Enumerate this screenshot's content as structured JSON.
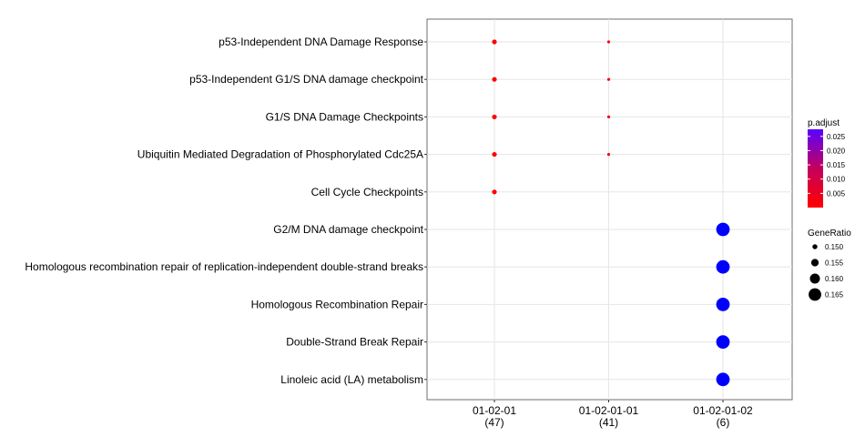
{
  "chart_data": {
    "type": "scatter",
    "categories": [
      "01-02-01",
      "01-02-01-01",
      "01-02-01-02"
    ],
    "category_counts": [
      "(47)",
      "(41)",
      "(6)"
    ],
    "terms": [
      "p53-Independent DNA Damage Response",
      "p53-Independent G1/S DNA damage checkpoint",
      "G1/S DNA Damage Checkpoints",
      "Ubiquitin Mediated Degradation of Phosphorylated Cdc25A",
      "Cell Cycle Checkpoints",
      "G2/M DNA damage checkpoint",
      "Homologous recombination repair of replication-independent double-strand breaks",
      "Homologous Recombination Repair",
      "Double-Strand Break Repair",
      "Linoleic acid (LA) metabolism"
    ],
    "points": [
      {
        "x": "01-02-01",
        "term": "p53-Independent DNA Damage Response",
        "gene_ratio": 0.1495,
        "p_adjust": 0.0001
      },
      {
        "x": "01-02-01",
        "term": "p53-Independent G1/S DNA damage checkpoint",
        "gene_ratio": 0.1495,
        "p_adjust": 0.0001
      },
      {
        "x": "01-02-01",
        "term": "G1/S DNA Damage Checkpoints",
        "gene_ratio": 0.1495,
        "p_adjust": 0.0001
      },
      {
        "x": "01-02-01",
        "term": "Ubiquitin Mediated Degradation of Phosphorylated Cdc25A",
        "gene_ratio": 0.1495,
        "p_adjust": 0.0001
      },
      {
        "x": "01-02-01",
        "term": "Cell Cycle Checkpoints",
        "gene_ratio": 0.1495,
        "p_adjust": 0.0005
      },
      {
        "x": "01-02-01-01",
        "term": "p53-Independent DNA Damage Response",
        "gene_ratio": 0.146,
        "p_adjust": 0.0003
      },
      {
        "x": "01-02-01-01",
        "term": "p53-Independent G1/S DNA damage checkpoint",
        "gene_ratio": 0.146,
        "p_adjust": 0.0003
      },
      {
        "x": "01-02-01-01",
        "term": "G1/S DNA Damage Checkpoints",
        "gene_ratio": 0.146,
        "p_adjust": 0.0003
      },
      {
        "x": "01-02-01-01",
        "term": "Ubiquitin Mediated Degradation of Phosphorylated Cdc25A",
        "gene_ratio": 0.146,
        "p_adjust": 0.0003
      },
      {
        "x": "01-02-01-02",
        "term": "G2/M DNA damage checkpoint",
        "gene_ratio": 0.1667,
        "p_adjust": 0.0275
      },
      {
        "x": "01-02-01-02",
        "term": "Homologous recombination repair of replication-independent double-strand breaks",
        "gene_ratio": 0.1667,
        "p_adjust": 0.0275
      },
      {
        "x": "01-02-01-02",
        "term": "Homologous Recombination Repair",
        "gene_ratio": 0.1667,
        "p_adjust": 0.0275
      },
      {
        "x": "01-02-01-02",
        "term": "Double-Strand Break Repair",
        "gene_ratio": 0.1667,
        "p_adjust": 0.0275
      },
      {
        "x": "01-02-01-02",
        "term": "Linoleic acid (LA) metabolism",
        "gene_ratio": 0.1667,
        "p_adjust": 0.0275
      }
    ],
    "color_legend": {
      "title": "p.adjust",
      "ticks": [
        0.025,
        0.02,
        0.015,
        0.01,
        0.005
      ],
      "tick_labels": [
        "0.025",
        "0.020",
        "0.015",
        "0.010",
        "0.005"
      ],
      "range": [
        0.0,
        0.0275
      ],
      "low_color": "#ff0000",
      "high_color": "#0000ff"
    },
    "size_legend": {
      "title": "GeneRatio",
      "values": [
        0.15,
        0.155,
        0.16,
        0.165
      ],
      "labels": [
        "0.150",
        "0.155",
        "0.160",
        "0.165"
      ],
      "range": [
        0.146,
        0.1667
      ]
    },
    "grid": true,
    "legend_position": "right"
  }
}
